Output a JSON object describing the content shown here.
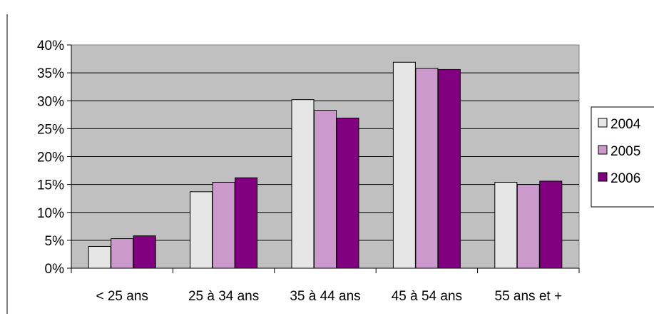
{
  "chart_data": {
    "type": "bar",
    "categories": [
      "< 25 ans",
      "25 à 34 ans",
      "35 à 44 ans",
      "45 à 54 ans",
      "55 ans et +"
    ],
    "series": [
      {
        "name": "2004",
        "color": "#e6e6e6",
        "values": [
          3.9,
          13.7,
          30.2,
          36.9,
          15.4
        ]
      },
      {
        "name": "2005",
        "color": "#cc99cc",
        "values": [
          5.3,
          15.4,
          28.3,
          35.8,
          15.0
        ]
      },
      {
        "name": "2006",
        "color": "#800080",
        "values": [
          5.8,
          16.2,
          26.9,
          35.6,
          15.6
        ]
      }
    ],
    "ylim": [
      0,
      40
    ],
    "yticks": [
      0,
      5,
      10,
      15,
      20,
      25,
      30,
      35,
      40
    ],
    "ytick_labels": [
      "0%",
      "5%",
      "10%",
      "15%",
      "20%",
      "25%",
      "30%",
      "35%",
      "40%"
    ],
    "title": "",
    "xlabel": "",
    "ylabel": "",
    "grid": true,
    "legend_position": "right",
    "plot_background": "#c0c0c0"
  }
}
